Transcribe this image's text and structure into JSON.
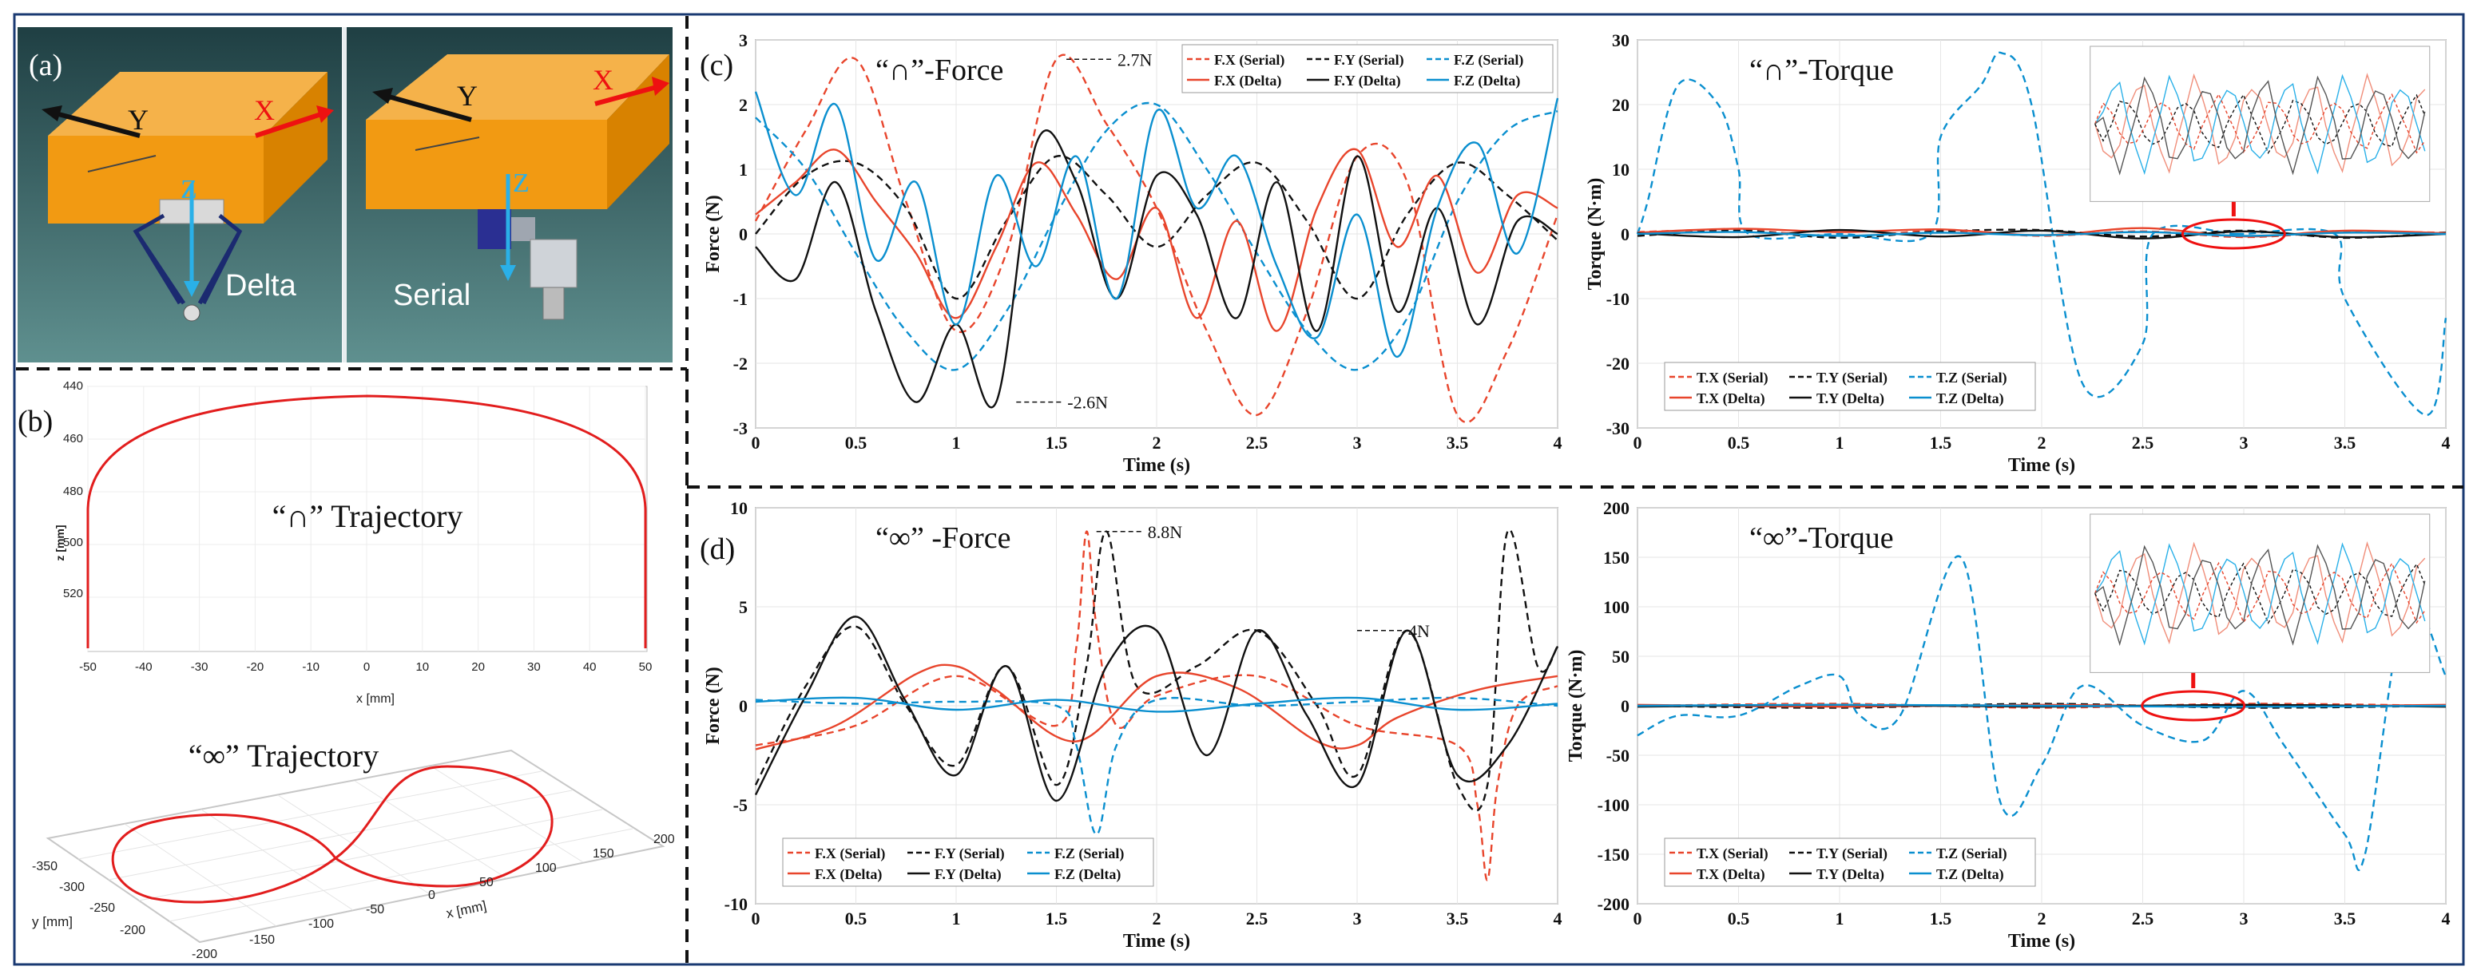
{
  "colors": {
    "red": "#e8452c",
    "red_light": "#f08e7a",
    "black": "#111111",
    "blue": "#0a8fcf",
    "blue_light": "#2ab0e8",
    "orange_block": "#f29a12",
    "frame_blue": "#1a3a72"
  },
  "panel_a": {
    "label": "(a)",
    "left": {
      "axis_x": "X",
      "axis_y": "Y",
      "axis_z": "Z",
      "name": "Delta"
    },
    "right": {
      "axis_x": "X",
      "axis_y": "Y",
      "axis_z": "Z",
      "name": "Serial"
    }
  },
  "panel_b": {
    "label": "(b)",
    "plot1": {
      "title": "“∩” Trajectory",
      "ylabel": "z [mm]",
      "xlabel": "x [mm]",
      "yticks": [
        "440",
        "460",
        "480",
        "500",
        "520"
      ],
      "xticks": [
        "-50",
        "-40",
        "-30",
        "-20",
        "-10",
        "0",
        "10",
        "20",
        "30",
        "40",
        "50"
      ]
    },
    "plot2": {
      "title": "“∞” Trajectory",
      "xlabel": "x [mm]",
      "ylabel": "y [mm]",
      "xticks": [
        "-200",
        "-150",
        "-100",
        "-50",
        "0",
        "50",
        "100",
        "150",
        "200"
      ],
      "yticks": [
        "-350",
        "-300",
        "-250",
        "-200"
      ]
    }
  },
  "chart_data": [
    {
      "id": "c-force",
      "type": "line",
      "panel": "(c)",
      "title": "“∩”-Force",
      "xlabel": "Time (s)",
      "ylabel": "Force (N)",
      "xlim": [
        0,
        4
      ],
      "ylim": [
        -3,
        3
      ],
      "xticks": [
        0,
        0.5,
        1,
        1.5,
        2,
        2.5,
        3,
        3.5,
        4
      ],
      "yticks": [
        -3,
        -2,
        -1,
        0,
        1,
        2,
        3
      ],
      "legend": [
        "F.X (Serial)",
        "F.Y (Serial)",
        "F.Z (Serial)",
        "F.X (Delta)",
        "F.Y (Delta)",
        "F.Z (Delta)"
      ],
      "legend_position": "top-right",
      "annotations": [
        {
          "text": "2.7N",
          "x": 1.55,
          "y": 2.7
        },
        {
          "text": "-2.6N",
          "x": 1.3,
          "y": -2.6
        }
      ],
      "series": [
        {
          "name": "F.X (Serial)",
          "color": "red",
          "dash": true,
          "x": [
            0,
            0.25,
            0.5,
            0.75,
            1,
            1.25,
            1.5,
            1.75,
            2,
            2.25,
            2.5,
            2.75,
            3,
            3.25,
            3.5,
            3.75,
            4
          ],
          "values": [
            0.2,
            1.6,
            2.7,
            0.5,
            -1.5,
            -0.3,
            2.7,
            1.7,
            0.4,
            -1.5,
            -2.8,
            -1.2,
            1.2,
            0.8,
            -2.8,
            -1.8,
            0.3
          ]
        },
        {
          "name": "F.Y (Serial)",
          "color": "black",
          "dash": true,
          "x": [
            0,
            0.25,
            0.5,
            0.75,
            1,
            1.25,
            1.5,
            1.75,
            2,
            2.25,
            2.5,
            2.75,
            3,
            3.25,
            3.5,
            3.75,
            4
          ],
          "values": [
            0.0,
            0.9,
            1.1,
            0.4,
            -1.0,
            0.2,
            1.2,
            0.6,
            -0.2,
            0.6,
            1.1,
            0.2,
            -1.0,
            0.3,
            1.1,
            0.6,
            -0.1
          ]
        },
        {
          "name": "F.Z (Serial)",
          "color": "blue",
          "dash": true,
          "x": [
            0,
            0.25,
            0.5,
            0.75,
            1,
            1.25,
            1.5,
            1.75,
            2,
            2.25,
            2.5,
            2.75,
            3,
            3.25,
            3.5,
            3.75,
            4
          ],
          "values": [
            1.8,
            1.0,
            -0.3,
            -1.5,
            -2.1,
            -1.2,
            0.3,
            1.6,
            2.0,
            1.0,
            -0.3,
            -1.5,
            -2.1,
            -1.3,
            0.5,
            1.6,
            1.9
          ]
        },
        {
          "name": "F.X (Delta)",
          "color": "red",
          "dash": false,
          "x": [
            0,
            0.2,
            0.4,
            0.6,
            0.8,
            1.0,
            1.2,
            1.4,
            1.6,
            1.8,
            2.0,
            2.2,
            2.4,
            2.6,
            2.8,
            3.0,
            3.2,
            3.4,
            3.6,
            3.8,
            4.0
          ],
          "values": [
            0.3,
            0.8,
            1.3,
            0.5,
            -0.3,
            -1.3,
            -0.2,
            1.1,
            0.3,
            -0.7,
            0.4,
            -1.3,
            0.2,
            -1.5,
            0.4,
            1.3,
            -0.2,
            0.9,
            -0.6,
            0.6,
            0.4
          ]
        },
        {
          "name": "F.Y (Delta)",
          "color": "black",
          "dash": false,
          "x": [
            0,
            0.2,
            0.4,
            0.6,
            0.8,
            1.0,
            1.2,
            1.4,
            1.6,
            1.8,
            2.0,
            2.2,
            2.4,
            2.6,
            2.8,
            3.0,
            3.2,
            3.4,
            3.6,
            3.8,
            4.0
          ],
          "values": [
            -0.2,
            -0.7,
            0.8,
            -1.2,
            -2.6,
            -1.4,
            -2.6,
            1.4,
            0.8,
            -1.0,
            0.9,
            0.3,
            -1.3,
            0.8,
            -1.5,
            1.2,
            -1.2,
            0.4,
            -1.4,
            0.2,
            0.0
          ]
        },
        {
          "name": "F.Z (Delta)",
          "color": "blue",
          "dash": false,
          "x": [
            0,
            0.2,
            0.4,
            0.6,
            0.8,
            1.0,
            1.2,
            1.4,
            1.6,
            1.8,
            2.0,
            2.2,
            2.4,
            2.6,
            2.8,
            3.0,
            3.2,
            3.4,
            3.6,
            3.8,
            4.0
          ],
          "values": [
            2.2,
            0.6,
            2.0,
            -0.4,
            0.8,
            -1.4,
            0.9,
            -0.5,
            1.2,
            -1.0,
            1.9,
            0.4,
            1.2,
            -0.5,
            -1.6,
            0.3,
            -1.9,
            0.4,
            1.4,
            -0.3,
            2.1
          ]
        }
      ]
    },
    {
      "id": "c-torque",
      "type": "line",
      "panel": "(c)",
      "title": "“∩”-Torque",
      "xlabel": "Time (s)",
      "ylabel": "Torque (N·m)",
      "xlim": [
        0,
        4
      ],
      "ylim": [
        -30,
        30
      ],
      "xticks": [
        0,
        0.5,
        1,
        1.5,
        2,
        2.5,
        3,
        3.5,
        4
      ],
      "yticks": [
        -30,
        -20,
        -10,
        0,
        10,
        20,
        30
      ],
      "legend": [
        "T.X (Serial)",
        "T.Y (Serial)",
        "T.Z (Serial)",
        "T.X (Delta)",
        "T.Y (Delta)",
        "T.Z (Delta)"
      ],
      "legend_position": "bottom-left",
      "series": [
        {
          "name": "T.X (Serial)",
          "color": "red",
          "dash": true,
          "x": [
            0,
            0.5,
            1,
            1.5,
            2,
            2.5,
            3,
            3.5,
            4
          ],
          "values": [
            0.3,
            0.6,
            -0.4,
            0.5,
            -0.3,
            0.4,
            -0.5,
            0.3,
            0.2
          ]
        },
        {
          "name": "T.Y (Serial)",
          "color": "black",
          "dash": true,
          "x": [
            0,
            0.5,
            1,
            1.5,
            2,
            2.5,
            3,
            3.5,
            4
          ],
          "values": [
            -0.3,
            0.5,
            -0.6,
            0.4,
            0.6,
            -0.4,
            0.5,
            -0.6,
            0.2
          ]
        },
        {
          "name": "T.Z (Serial)",
          "color": "blue",
          "dash": true,
          "x": [
            0,
            0.05,
            0.2,
            0.4,
            0.5,
            0.55,
            1,
            1.45,
            1.5,
            1.7,
            1.8,
            1.95,
            2.2,
            2.5,
            2.55,
            2.95,
            3,
            3.45,
            3.5,
            3.9,
            4.0
          ],
          "values": [
            0,
            5,
            23,
            20,
            10,
            0,
            0,
            0,
            15,
            23,
            28,
            20,
            -23,
            -17,
            0,
            0,
            0,
            0,
            -10,
            -28,
            -13
          ]
        },
        {
          "name": "T.X (Delta)",
          "color": "red",
          "dash": false,
          "x": [
            0,
            0.5,
            1,
            1.5,
            2,
            2.5,
            3,
            3.5,
            4
          ],
          "values": [
            0.2,
            0.8,
            0.3,
            0.7,
            -0.2,
            0.9,
            -0.4,
            0.5,
            0.1
          ]
        },
        {
          "name": "T.Y (Delta)",
          "color": "black",
          "dash": false,
          "x": [
            0,
            0.5,
            1,
            1.5,
            2,
            2.5,
            3,
            3.5,
            4
          ],
          "values": [
            0.1,
            -0.5,
            0.6,
            -0.4,
            0.5,
            -0.7,
            0.4,
            -0.5,
            0.0
          ]
        },
        {
          "name": "T.Z (Delta)",
          "color": "blue",
          "dash": false,
          "x": [
            0,
            0.5,
            1,
            1.5,
            2,
            2.5,
            3,
            3.5,
            4
          ],
          "values": [
            0.0,
            0.3,
            -0.3,
            0.2,
            -0.2,
            0.3,
            -0.3,
            0.2,
            0.0
          ]
        }
      ]
    },
    {
      "id": "d-force",
      "type": "line",
      "panel": "(d)",
      "title": "“∞” -Force",
      "xlabel": "Time (s)",
      "ylabel": "Force (N)",
      "xlim": [
        0,
        4
      ],
      "ylim": [
        -10,
        10
      ],
      "xticks": [
        0,
        0.5,
        1,
        1.5,
        2,
        2.5,
        3,
        3.5,
        4
      ],
      "yticks": [
        -10,
        -5,
        0,
        5,
        10
      ],
      "legend": [
        "F.X (Serial)",
        "F.Y (Serial)",
        "F.Z (Serial)",
        "F.X (Delta)",
        "F.Y (Delta)",
        "F.Z (Delta)"
      ],
      "legend_position": "bottom-left",
      "annotations": [
        {
          "text": "8.8N",
          "x": 1.7,
          "y": 8.8
        },
        {
          "text": "4N",
          "x": 3.0,
          "y": 3.8
        }
      ],
      "series": [
        {
          "name": "F.X (Serial)",
          "color": "red",
          "dash": true,
          "x": [
            0,
            0.5,
            1,
            1.5,
            1.6,
            1.65,
            1.7,
            1.8,
            2,
            2.5,
            3,
            3.5,
            3.6,
            3.65,
            3.7,
            3.8,
            4
          ],
          "values": [
            -2,
            -1,
            1.5,
            -1,
            3,
            8.8,
            4,
            -1,
            0.5,
            1.5,
            -1,
            -2,
            -5,
            -8.8,
            -4,
            0,
            1
          ]
        },
        {
          "name": "F.Y (Serial)",
          "color": "black",
          "dash": true,
          "x": [
            0,
            0.25,
            0.5,
            0.75,
            1,
            1.25,
            1.5,
            1.65,
            1.75,
            1.9,
            2.2,
            2.5,
            2.8,
            3.0,
            3.25,
            3.5,
            3.65,
            3.75,
            3.9,
            4.0
          ],
          "values": [
            -4,
            1,
            4,
            0,
            -3,
            2,
            -4,
            2,
            8.8,
            1,
            2,
            3.8,
            0,
            -3.5,
            3.8,
            -4,
            -4,
            8.8,
            2,
            3
          ]
        },
        {
          "name": "F.Z (Serial)",
          "color": "blue",
          "dash": true,
          "x": [
            0,
            0.5,
            1,
            1.5,
            1.6,
            1.7,
            1.8,
            2,
            2.5,
            3,
            3.5,
            4
          ],
          "values": [
            0.3,
            0.1,
            0.2,
            0.0,
            -2,
            -6.5,
            -2,
            0.3,
            0.0,
            0.2,
            0.4,
            0.0
          ]
        },
        {
          "name": "F.X (Delta)",
          "color": "red",
          "dash": false,
          "x": [
            0,
            0.4,
            0.8,
            1.0,
            1.2,
            1.6,
            2.0,
            2.4,
            2.8,
            3.0,
            3.2,
            3.6,
            4.0
          ],
          "values": [
            -2.2,
            -1.0,
            1.6,
            2.0,
            0.8,
            -1.8,
            1.5,
            0.9,
            -1.8,
            -2.0,
            -0.6,
            0.8,
            1.5
          ]
        },
        {
          "name": "F.Y (Delta)",
          "color": "black",
          "dash": false,
          "x": [
            0,
            0.25,
            0.5,
            0.75,
            1,
            1.25,
            1.5,
            1.75,
            2,
            2.25,
            2.5,
            2.75,
            3,
            3.25,
            3.5,
            3.75,
            4
          ],
          "values": [
            -4.5,
            0.5,
            4.5,
            0.2,
            -3.5,
            2.0,
            -4.8,
            2.0,
            3.8,
            -2.5,
            3.8,
            -0.5,
            -4.0,
            3.8,
            -3.5,
            -2,
            3.0
          ]
        },
        {
          "name": "F.Z (Delta)",
          "color": "blue",
          "dash": false,
          "x": [
            0,
            0.5,
            1,
            1.5,
            2,
            2.5,
            3,
            3.5,
            4
          ],
          "values": [
            0.2,
            0.4,
            -0.2,
            0.3,
            -0.3,
            0.1,
            0.4,
            -0.2,
            0.1
          ]
        }
      ]
    },
    {
      "id": "d-torque",
      "type": "line",
      "panel": "(d)",
      "title": "“∞”-Torque",
      "xlabel": "Time (s)",
      "ylabel": "Torque (N·m)",
      "xlim": [
        0,
        4
      ],
      "ylim": [
        -200,
        200
      ],
      "xticks": [
        0,
        0.5,
        1,
        1.5,
        2,
        2.5,
        3,
        3.5,
        4
      ],
      "yticks": [
        -200,
        -150,
        -100,
        -50,
        0,
        50,
        100,
        150,
        200
      ],
      "legend": [
        "T.X (Serial)",
        "T.Y (Serial)",
        "T.Z (Serial)",
        "T.X (Delta)",
        "T.Y (Delta)",
        "T.Z (Delta)"
      ],
      "legend_position": "bottom-left",
      "series": [
        {
          "name": "T.X (Serial)",
          "color": "red",
          "dash": true,
          "x": [
            0,
            1,
            2,
            3,
            4
          ],
          "values": [
            0,
            2,
            -2,
            2,
            0
          ]
        },
        {
          "name": "T.Y (Serial)",
          "color": "black",
          "dash": true,
          "x": [
            0,
            1,
            2,
            3,
            4
          ],
          "values": [
            0,
            -2,
            2,
            -2,
            0
          ]
        },
        {
          "name": "T.Z (Serial)",
          "color": "blue",
          "dash": true,
          "x": [
            0,
            0.2,
            0.5,
            0.8,
            1.0,
            1.1,
            1.3,
            1.6,
            1.8,
            2.0,
            2.2,
            2.5,
            2.8,
            3.0,
            3.2,
            3.5,
            3.6,
            3.8,
            4.0
          ],
          "values": [
            -30,
            -10,
            -10,
            20,
            30,
            -10,
            -10,
            150,
            -100,
            -60,
            20,
            -20,
            -35,
            15,
            -40,
            -130,
            -150,
            100,
            30
          ]
        },
        {
          "name": "T.X (Delta)",
          "color": "red",
          "dash": false,
          "x": [
            0,
            1,
            2,
            3,
            4
          ],
          "values": [
            1,
            -1,
            1,
            -1,
            1
          ]
        },
        {
          "name": "T.Y (Delta)",
          "color": "black",
          "dash": false,
          "x": [
            0,
            1,
            2,
            3,
            4
          ],
          "values": [
            -1,
            1,
            -1,
            1,
            -1
          ]
        },
        {
          "name": "T.Z (Delta)",
          "color": "blue",
          "dash": false,
          "x": [
            0,
            1,
            2,
            3,
            4
          ],
          "values": [
            0,
            1,
            0,
            -1,
            0
          ]
        }
      ]
    }
  ]
}
